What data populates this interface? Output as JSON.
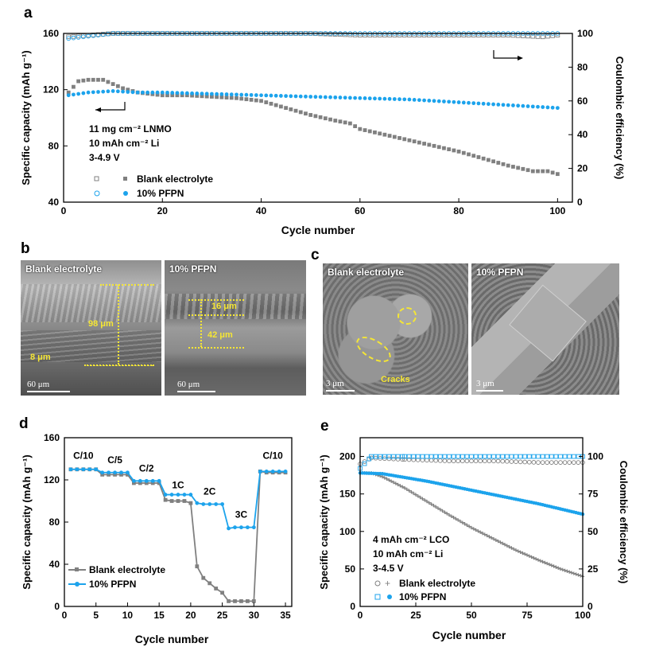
{
  "panel_letters": {
    "a": "a",
    "b": "b",
    "c": "c",
    "d": "d",
    "e": "e"
  },
  "colors": {
    "blank": "#808080",
    "pfpn": "#1ca3ec",
    "arrow": "#000000",
    "annot": "#f5e634"
  },
  "chart_data": [
    {
      "id": "a",
      "type": "scatter",
      "xlabel": "Cycle number",
      "ylabel": "Specific capacity (mAh g⁻¹)",
      "y2label": "Coulombic efficiency (%)",
      "xlim": [
        0,
        103
      ],
      "ylim": [
        40,
        160
      ],
      "y2lim": [
        0,
        100
      ],
      "xticks": [
        0,
        20,
        40,
        60,
        80,
        100
      ],
      "yticks": [
        40,
        80,
        120,
        160
      ],
      "y2ticks": [
        0,
        20,
        40,
        60,
        80,
        100
      ],
      "annotation_lines": [
        "11 mg cm⁻² LNMO",
        "10 mAh cm⁻² Li",
        "3-4.9 V"
      ],
      "legend": [
        "Blank electrolyte",
        "10% PFPN"
      ],
      "series": [
        {
          "name": "Blank electrolyte",
          "axis": "left",
          "marker": "filled-square",
          "points": [
            [
              1,
              118
            ],
            [
              3,
              126
            ],
            [
              5,
              127
            ],
            [
              8,
              127
            ],
            [
              10,
              124
            ],
            [
              12,
              121
            ],
            [
              15,
              118
            ],
            [
              20,
              116
            ],
            [
              25,
              116
            ],
            [
              30,
              115
            ],
            [
              35,
              114
            ],
            [
              40,
              112
            ],
            [
              45,
              107
            ],
            [
              50,
              102
            ],
            [
              55,
              98
            ],
            [
              58,
              96
            ],
            [
              60,
              92
            ],
            [
              65,
              88
            ],
            [
              70,
              84
            ],
            [
              75,
              80
            ],
            [
              80,
              76
            ],
            [
              85,
              71
            ],
            [
              90,
              66
            ],
            [
              95,
              62
            ],
            [
              98,
              62
            ],
            [
              100,
              60
            ]
          ]
        },
        {
          "name": "10% PFPN",
          "axis": "left",
          "marker": "filled-circle",
          "points": [
            [
              1,
              116
            ],
            [
              5,
              118
            ],
            [
              10,
              119
            ],
            [
              15,
              118
            ],
            [
              20,
              118
            ],
            [
              30,
              117
            ],
            [
              40,
              116
            ],
            [
              50,
              115
            ],
            [
              60,
              114
            ],
            [
              70,
              113
            ],
            [
              80,
              111
            ],
            [
              90,
              109
            ],
            [
              100,
              107
            ]
          ]
        },
        {
          "name": "Blank electrolyte CE",
          "axis": "right",
          "marker": "open-square",
          "points": [
            [
              1,
              98
            ],
            [
              10,
              100
            ],
            [
              20,
              100
            ],
            [
              30,
              100
            ],
            [
              40,
              100
            ],
            [
              50,
              100
            ],
            [
              60,
              99
            ],
            [
              70,
              99
            ],
            [
              80,
              99
            ],
            [
              90,
              99
            ],
            [
              97,
              98
            ],
            [
              100,
              99
            ]
          ]
        },
        {
          "name": "10% PFPN CE",
          "axis": "right",
          "marker": "open-circle",
          "points": [
            [
              1,
              97
            ],
            [
              10,
              100
            ],
            [
              20,
              100
            ],
            [
              30,
              100
            ],
            [
              40,
              100
            ],
            [
              50,
              100
            ],
            [
              60,
              100
            ],
            [
              70,
              100
            ],
            [
              80,
              100
            ],
            [
              90,
              100
            ],
            [
              100,
              100
            ]
          ]
        }
      ]
    },
    {
      "id": "d",
      "type": "line",
      "xlabel": "Cycle number",
      "ylabel": "Specific capacity (mAh g⁻¹)",
      "xlim": [
        0,
        36
      ],
      "ylim": [
        0,
        160
      ],
      "xticks": [
        0,
        5,
        10,
        15,
        20,
        25,
        30,
        35
      ],
      "yticks": [
        0,
        40,
        80,
        120,
        160
      ],
      "rate_labels": [
        {
          "label": "C/10",
          "x": 3,
          "y": 140
        },
        {
          "label": "C/5",
          "x": 8,
          "y": 136
        },
        {
          "label": "C/2",
          "x": 13,
          "y": 128
        },
        {
          "label": "1C",
          "x": 18,
          "y": 112
        },
        {
          "label": "2C",
          "x": 23,
          "y": 106
        },
        {
          "label": "3C",
          "x": 28,
          "y": 84
        },
        {
          "label": "C/10",
          "x": 33,
          "y": 140
        }
      ],
      "legend": [
        "Blank electrolyte",
        "10% PFPN"
      ],
      "series": [
        {
          "name": "Blank electrolyte",
          "marker": "square",
          "x": [
            1,
            2,
            3,
            4,
            5,
            6,
            7,
            8,
            9,
            10,
            11,
            12,
            13,
            14,
            15,
            16,
            17,
            18,
            19,
            20,
            21,
            22,
            23,
            24,
            25,
            26,
            27,
            28,
            29,
            30,
            31,
            32,
            33,
            34,
            35
          ],
          "y": [
            130,
            130,
            130,
            130,
            130,
            125,
            125,
            125,
            125,
            125,
            117,
            117,
            117,
            117,
            117,
            101,
            100,
            100,
            100,
            98,
            38,
            27,
            22,
            17,
            13,
            5,
            5,
            5,
            5,
            5,
            128,
            127,
            127,
            127,
            127
          ]
        },
        {
          "name": "10% PFPN",
          "marker": "circle",
          "x": [
            1,
            2,
            3,
            4,
            5,
            6,
            7,
            8,
            9,
            10,
            11,
            12,
            13,
            14,
            15,
            16,
            17,
            18,
            19,
            20,
            21,
            22,
            23,
            24,
            25,
            26,
            27,
            28,
            29,
            30,
            31,
            32,
            33,
            34,
            35
          ],
          "y": [
            130,
            130,
            130,
            130,
            130,
            127,
            127,
            127,
            127,
            127,
            119,
            119,
            119,
            119,
            119,
            106,
            106,
            106,
            106,
            106,
            98,
            97,
            97,
            97,
            97,
            74,
            75,
            75,
            75,
            75,
            128,
            128,
            128,
            128,
            128
          ]
        }
      ]
    },
    {
      "id": "e",
      "type": "scatter",
      "xlabel": "Cycle number",
      "ylabel": "Specific capacity (mAh g⁻¹)",
      "y2label": "Coulombic efficiency (%)",
      "xlim": [
        0,
        100
      ],
      "ylim": [
        0,
        225
      ],
      "y2lim": [
        0,
        112.5
      ],
      "xticks": [
        0,
        25,
        50,
        75,
        100
      ],
      "yticks": [
        0,
        50,
        100,
        150,
        200
      ],
      "y2ticks": [
        0,
        25,
        50,
        75,
        100
      ],
      "annotation_lines": [
        "4 mAh cm⁻² LCO",
        "10 mAh cm⁻² Li",
        "3-4.5 V"
      ],
      "legend": [
        "Blank electrolyte",
        "10% PFPN"
      ],
      "series": [
        {
          "name": "Blank electrolyte",
          "axis": "left",
          "marker": "cross",
          "points": [
            [
              0,
              178
            ],
            [
              5,
              178
            ],
            [
              10,
              173
            ],
            [
              20,
              158
            ],
            [
              30,
              140
            ],
            [
              40,
              122
            ],
            [
              50,
              105
            ],
            [
              60,
              90
            ],
            [
              70,
              75
            ],
            [
              80,
              62
            ],
            [
              90,
              50
            ],
            [
              100,
              40
            ]
          ]
        },
        {
          "name": "10% PFPN",
          "axis": "left",
          "marker": "filled-circle",
          "points": [
            [
              0,
              178
            ],
            [
              10,
              177
            ],
            [
              20,
              172
            ],
            [
              30,
              167
            ],
            [
              40,
              161
            ],
            [
              50,
              155
            ],
            [
              60,
              149
            ],
            [
              70,
              143
            ],
            [
              80,
              137
            ],
            [
              90,
              130
            ],
            [
              100,
              123
            ]
          ]
        },
        {
          "name": "Blank electrolyte CE",
          "axis": "right",
          "marker": "open-circle",
          "points": [
            [
              0,
              95
            ],
            [
              5,
              99
            ],
            [
              20,
              98
            ],
            [
              40,
              97
            ],
            [
              60,
              97
            ],
            [
              80,
              96
            ],
            [
              100,
              96
            ]
          ]
        },
        {
          "name": "10% PFPN CE",
          "axis": "right",
          "marker": "open-square",
          "points": [
            [
              0,
              92
            ],
            [
              5,
              100
            ],
            [
              20,
              100
            ],
            [
              40,
              100
            ],
            [
              60,
              100
            ],
            [
              80,
              100
            ],
            [
              100,
              100
            ]
          ]
        }
      ]
    }
  ],
  "sem_b": {
    "left": {
      "title": "Blank electrolyte",
      "scale": "60 μm",
      "thick_label": "98 μm",
      "thin_label": "8 μm"
    },
    "right": {
      "title": "10% PFPN",
      "scale": "60 μm",
      "thick_label": "16 μm",
      "thin_label": "42 μm"
    }
  },
  "sem_c": {
    "left": {
      "title": "Blank electrolyte",
      "scale": "3 μm",
      "cracks_label": "Cracks"
    },
    "right": {
      "title": "10% PFPN",
      "scale": "3 μm"
    }
  }
}
